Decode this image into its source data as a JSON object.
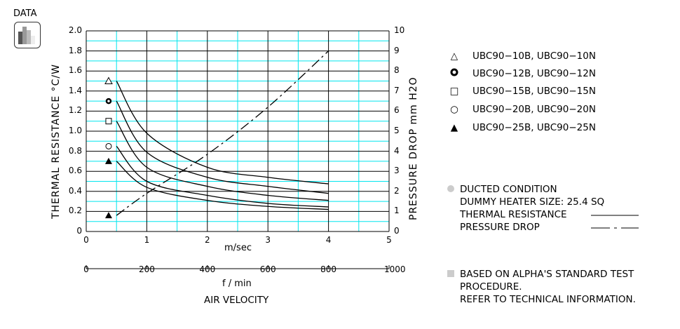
{
  "header": {
    "data_label": "DATA",
    "icon": "bar-chart-icon"
  },
  "chart_data": {
    "type": "line",
    "title": "",
    "xlabel": "m/sec",
    "xlabel2": "f / min",
    "xlabel_main": "AIR VELOCITY",
    "ylabel": "THERMAL  RESISTANCE  °C/W",
    "ylabel_right": "PRESSURE  DROP   mm H2O",
    "xlim": [
      0,
      5
    ],
    "ylim": [
      0,
      2.0
    ],
    "ylim_right": [
      0,
      10
    ],
    "x_ticks": [
      "0",
      "1",
      "2",
      "3",
      "4",
      "5"
    ],
    "x2_ticks": [
      "0",
      "200",
      "400",
      "600",
      "800",
      "1000"
    ],
    "y_ticks": [
      "0",
      "0.2",
      "0.4",
      "0.6",
      "0.8",
      "1.0",
      "1.2",
      "1.4",
      "1.6",
      "1.8",
      "2.0"
    ],
    "y_right_ticks": [
      "0",
      "1",
      "2",
      "3",
      "4",
      "5",
      "6",
      "7",
      "8",
      "9",
      "10"
    ],
    "grid": true,
    "x": [
      0.5,
      1,
      2,
      3,
      4
    ],
    "series": [
      {
        "name": "UBC90-10B, UBC90-10N",
        "marker": "triangle-open",
        "axis": "left",
        "values": [
          1.5,
          0.98,
          0.64,
          0.54,
          0.475
        ]
      },
      {
        "name": "UBC90-12B, UBC90-12N",
        "marker": "circle-bold",
        "axis": "left",
        "values": [
          1.3,
          0.79,
          0.54,
          0.45,
          0.38
        ]
      },
      {
        "name": "UBC90-15B, UBC90-15N",
        "marker": "square-open",
        "axis": "left",
        "values": [
          1.1,
          0.64,
          0.45,
          0.36,
          0.31
        ]
      },
      {
        "name": "UBC90-20B, UBC90-20N",
        "marker": "circle-open",
        "axis": "left",
        "values": [
          0.85,
          0.5,
          0.36,
          0.28,
          0.245
        ]
      },
      {
        "name": "UBC90-25B, UBC90-25N",
        "marker": "triangle-filled",
        "axis": "left",
        "values": [
          0.7,
          0.44,
          0.31,
          0.25,
          0.22
        ]
      },
      {
        "name": "Pressure Drop",
        "marker": "triangle-filled",
        "axis": "right",
        "style": "dash-dot",
        "values": [
          0.8,
          1.9,
          3.85,
          6.2,
          9.0
        ]
      }
    ],
    "legend_position": "right"
  },
  "legend": {
    "items": [
      {
        "symbol": "△",
        "label": "UBC90−10B, UBC90−10N"
      },
      {
        "symbol": "●",
        "label": "UBC90−12B, UBC90−12N"
      },
      {
        "symbol": "□",
        "label": "UBC90−15B, UBC90−15N"
      },
      {
        "symbol": "○",
        "label": "UBC90−20B, UBC90−20N"
      },
      {
        "symbol": "▲",
        "label": "UBC90−25B, UBC90−25N"
      }
    ]
  },
  "notes": {
    "ducted": "DUCTED CONDITION",
    "heater": "DUMMY HEATER SIZE:  25.4 SQ",
    "thermal": "THERMAL RESISTANCE",
    "pressure": "PRESSURE DROP",
    "based1": "BASED ON ALPHA'S STANDARD TEST",
    "based2": "PROCEDURE.",
    "based3": "REFER TO TECHNICAL INFORMATION."
  },
  "colors": {
    "grid_major": "#000000",
    "grid_minor": "#00e5ee",
    "note_bullet": "#cccccc"
  }
}
